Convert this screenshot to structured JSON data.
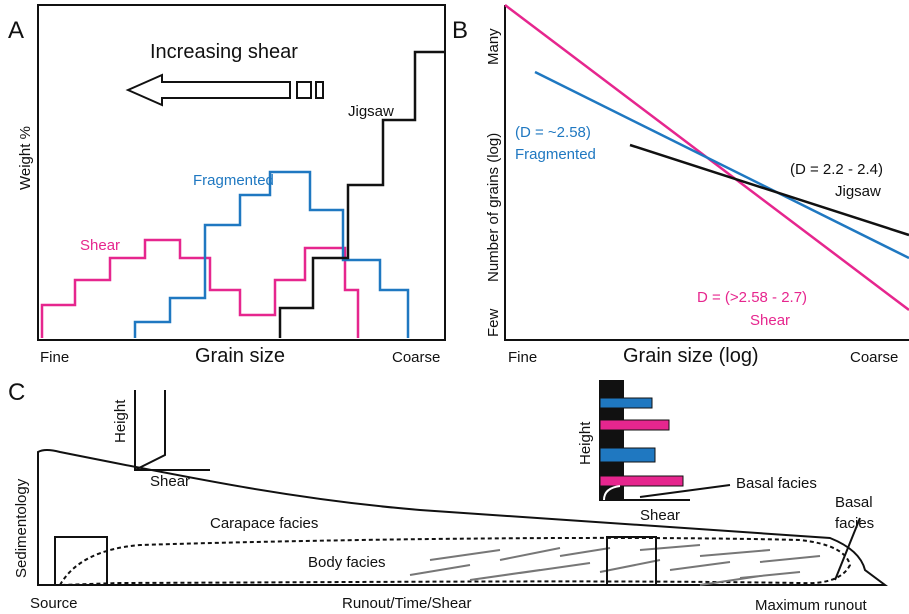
{
  "panel_a": {
    "label": "A",
    "arrow_label": "Increasing shear",
    "y_label": "Weight %",
    "x_label": "Grain size",
    "x_low": "Fine",
    "x_high": "Coarse",
    "curves": [
      "Jigsaw",
      "Fragmented",
      "Shear"
    ]
  },
  "panel_b": {
    "label": "B",
    "y_label": "Number of grains (log)",
    "y_high": "Many",
    "y_low": "Few",
    "x_label": "Grain size (log)",
    "x_low": "Fine",
    "x_high": "Coarse",
    "lines": [
      {
        "d": "(D = ~2.58)",
        "name": "Fragmented"
      },
      {
        "d": "(D = 2.2 - 2.4)",
        "name": "Jigsaw"
      },
      {
        "d": "D = (>2.58 - 2.7)",
        "name": "Shear"
      }
    ]
  },
  "panel_c": {
    "label": "C",
    "y_label": "Sedimentology",
    "inset_left": {
      "y_label": "Height",
      "x_label": "Shear"
    },
    "inset_right": {
      "y_label": "Height",
      "x_label": "Shear",
      "note": "Basal facies"
    },
    "carapace": "Carapace facies",
    "body": "Body facies",
    "basal": [
      "Basal",
      "facies"
    ],
    "x_left": "Source",
    "x_mid": "Runout/Time/Shear",
    "x_right": "Maximum runout"
  }
}
